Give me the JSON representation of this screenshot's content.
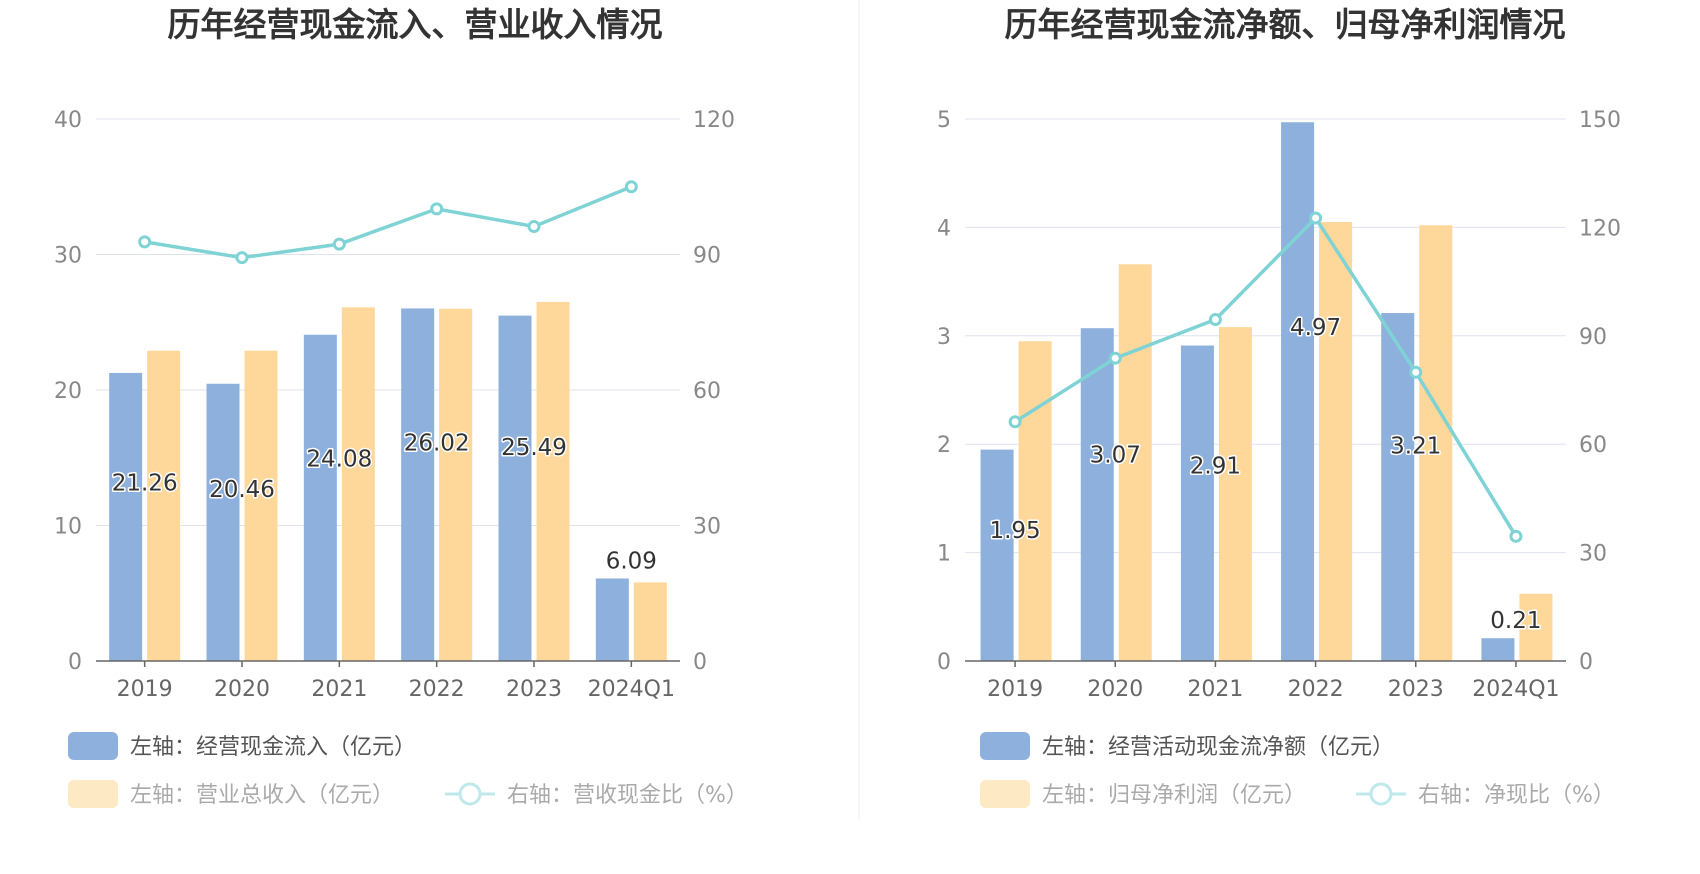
{
  "chart_data": [
    {
      "type": "bar",
      "title": "历年经营现金流入、营业收入情况",
      "categories": [
        "2019",
        "2020",
        "2021",
        "2022",
        "2023",
        "2024Q1"
      ],
      "left_axis": {
        "ylim": [
          0,
          40
        ],
        "ticks": [
          0,
          10,
          20,
          30,
          40
        ]
      },
      "right_axis": {
        "ylim": [
          0,
          120
        ],
        "ticks": [
          0,
          30,
          60,
          90,
          120
        ]
      },
      "grid": true,
      "legend_position": "bottom",
      "series": [
        {
          "name": "左轴：经营现金流入（亿元）",
          "type": "bar",
          "axis": "left",
          "color": "#8eb0dc",
          "values": [
            21.26,
            20.46,
            24.08,
            26.02,
            25.49,
            6.09
          ],
          "labels": [
            "21.26",
            "20.46",
            "24.08",
            "26.02",
            "25.49",
            "6.09"
          ]
        },
        {
          "name": "左轴：营业总收入（亿元）",
          "type": "bar",
          "axis": "left",
          "color": "#fed89a",
          "values": [
            22.9,
            22.9,
            26.1,
            26.0,
            26.5,
            5.8
          ]
        },
        {
          "name": "右轴：营收现金比（%）",
          "type": "line",
          "axis": "right",
          "color": "#7fd3d5",
          "values": [
            92.8,
            89.3,
            92.3,
            100.1,
            96.2,
            105.0
          ]
        }
      ]
    },
    {
      "type": "bar",
      "title": "历年经营现金流净额、归母净利润情况",
      "categories": [
        "2019",
        "2020",
        "2021",
        "2022",
        "2023",
        "2024Q1"
      ],
      "left_axis": {
        "ylim": [
          0,
          5
        ],
        "ticks": [
          0,
          1,
          2,
          3,
          4,
          5
        ]
      },
      "right_axis": {
        "ylim": [
          0,
          150
        ],
        "ticks": [
          0,
          30,
          60,
          90,
          120,
          150
        ]
      },
      "grid": true,
      "legend_position": "bottom",
      "series": [
        {
          "name": "左轴：经营活动现金流净额（亿元）",
          "type": "bar",
          "axis": "left",
          "color": "#8eb0dc",
          "values": [
            1.95,
            3.07,
            2.91,
            4.97,
            3.21,
            0.21
          ],
          "labels": [
            "1.95",
            "3.07",
            "2.91",
            "4.97",
            "3.21",
            "0.21"
          ]
        },
        {
          "name": "左轴：归母净利润（亿元）",
          "type": "bar",
          "axis": "left",
          "color": "#fed89a",
          "values": [
            2.95,
            3.66,
            3.08,
            4.05,
            4.02,
            0.62
          ]
        },
        {
          "name": "右轴：净现比（%）",
          "type": "line",
          "axis": "right",
          "color": "#7fd3d5",
          "values": [
            66.2,
            83.8,
            94.5,
            122.6,
            79.9,
            34.5
          ]
        }
      ]
    }
  ]
}
